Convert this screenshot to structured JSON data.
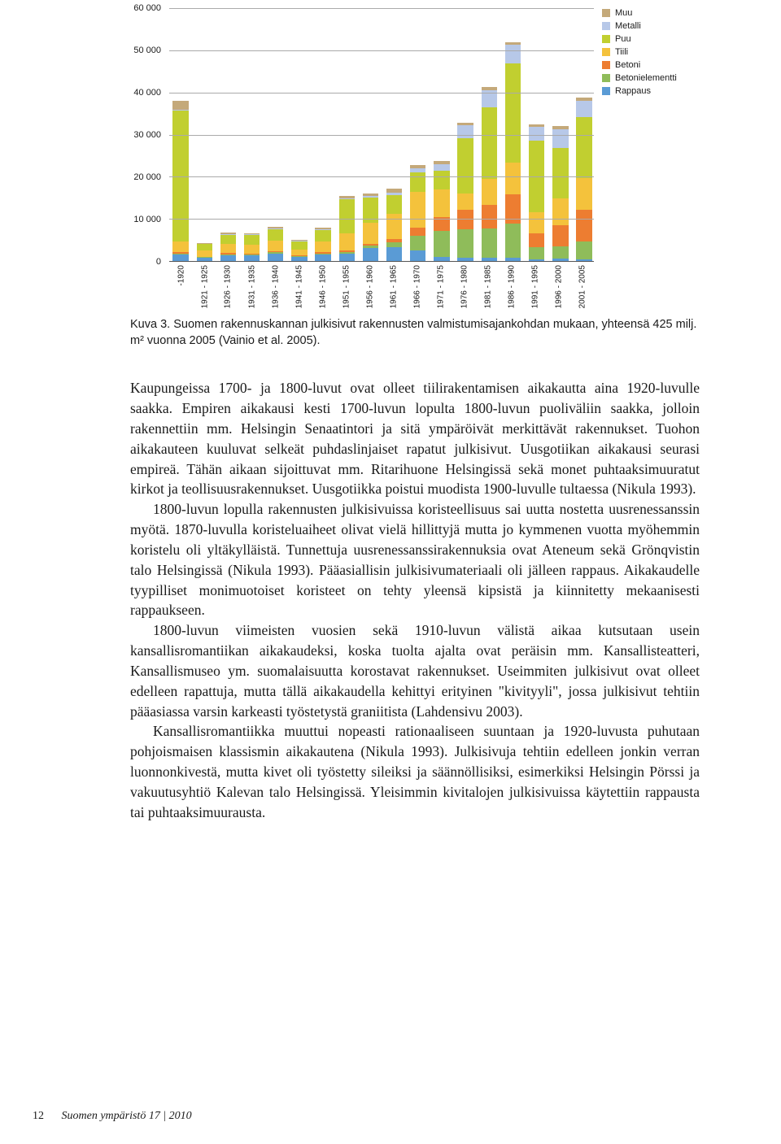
{
  "chart": {
    "type": "stacked-bar",
    "ylim": [
      0,
      60000
    ],
    "yticks": [
      0,
      10000,
      20000,
      30000,
      40000,
      50000,
      60000
    ],
    "ytick_labels": [
      "0",
      "10 000",
      "20 000",
      "30 000",
      "40 000",
      "50 000",
      "60 000"
    ],
    "background_color": "#ffffff",
    "grid_color": "#aaaaaa",
    "axis_font_family": "Arial",
    "axis_font_size": 11,
    "legend_font_size": 11,
    "series": [
      {
        "key": "rappaus",
        "label": "Rappaus",
        "color": "#5a9bd5"
      },
      {
        "key": "betonielementti",
        "label": "Betonielementti",
        "color": "#8fbc5a"
      },
      {
        "key": "betoni",
        "label": "Betoni",
        "color": "#ed7d31"
      },
      {
        "key": "tiili",
        "label": "Tiili",
        "color": "#f4c23c"
      },
      {
        "key": "puu",
        "label": "Puu",
        "color": "#c1cf30"
      },
      {
        "key": "metalli",
        "label": "Metalli",
        "color": "#b7c8e8"
      },
      {
        "key": "muu",
        "label": "Muu",
        "color": "#c4a97a"
      }
    ],
    "legend_order": [
      "muu",
      "metalli",
      "puu",
      "tiili",
      "betoni",
      "betonielementti",
      "rappaus"
    ],
    "categories": [
      "-1920",
      "1921 - 1925",
      "1926 - 1930",
      "1931 - 1935",
      "1936 - 1940",
      "1941 - 1945",
      "1946 - 1950",
      "1951 - 1955",
      "1956 - 1960",
      "1961 - 1965",
      "1966 - 1970",
      "1971 - 1975",
      "1976 - 1980",
      "1981 - 1985",
      "1986 - 1990",
      "1991 - 1995",
      "1996 - 2000",
      "2001 - 2005"
    ],
    "data": {
      "rappaus": [
        1600,
        800,
        1400,
        1300,
        1800,
        1000,
        1500,
        1800,
        3000,
        3300,
        2600,
        1000,
        800,
        700,
        800,
        400,
        500,
        400
      ],
      "betonielementti": [
        200,
        100,
        200,
        200,
        300,
        200,
        300,
        400,
        600,
        1200,
        3300,
        6200,
        6700,
        7000,
        8000,
        2800,
        3000,
        4200
      ],
      "betoni": [
        300,
        150,
        250,
        250,
        300,
        200,
        300,
        400,
        500,
        700,
        2000,
        3300,
        4600,
        5700,
        7000,
        3400,
        5000,
        7500
      ],
      "tiili": [
        2600,
        1450,
        2200,
        2100,
        2500,
        1300,
        2500,
        4000,
        5000,
        6000,
        8600,
        6500,
        4000,
        6000,
        7500,
        5000,
        6300,
        7500
      ],
      "puu": [
        31000,
        1500,
        2200,
        2300,
        2700,
        1900,
        2800,
        8000,
        5900,
        4500,
        4500,
        4500,
        13000,
        17000,
        23500,
        17000,
        12000,
        14500
      ],
      "metalli": [
        200,
        50,
        150,
        150,
        200,
        150,
        200,
        300,
        400,
        600,
        1000,
        1500,
        3200,
        4100,
        4500,
        3300,
        4500,
        4000
      ],
      "muu": [
        2100,
        150,
        300,
        300,
        400,
        250,
        400,
        600,
        700,
        900,
        700,
        800,
        500,
        800,
        700,
        600,
        700,
        700
      ]
    }
  },
  "caption": {
    "label": "Kuva 3.",
    "text": "Suomen rakennuskannan julkisivut rakennusten valmistumisajankohdan mukaan, yhteensä 425 milj. m² vuonna 2005 (Vainio et al. 2005)."
  },
  "paragraphs": [
    "Kaupungeissa 1700- ja 1800-luvut ovat olleet tiilirakentamisen aikakautta aina 1920-luvulle saakka. Empiren aikakausi kesti 1700-luvun lopulta 1800-luvun puoliväliin saakka, jolloin rakennettiin mm. Helsingin Senaatintori ja sitä ympäröivät merkittävät rakennukset. Tuohon aikakauteen kuuluvat selkeät puhdaslinjaiset rapatut julkisivut. Uusgotiikan aikakausi seurasi empireä. Tähän aikaan sijoittuvat mm. Ritarihuone Helsingissä sekä monet puhtaaksimuuratut kirkot ja teollisuusrakennukset. Uusgotiikka poistui muodista 1900-luvulle tultaessa (Nikula 1993).",
    "1800-luvun lopulla rakennusten julkisivuissa koristeellisuus sai uutta nostetta uusrenessanssin myötä. 1870-luvulla koristeluaiheet olivat vielä hillittyjä mutta jo kymmenen vuotta myöhemmin koristelu oli yltäkylläistä. Tunnettuja uusrenessanssirakennuksia ovat Ateneum sekä Grönqvistin talo Helsingissä (Nikula 1993). Pääasiallisin julkisivumateriaali oli jälleen rappaus. Aikakaudelle tyypilliset monimuotoiset koristeet on tehty yleensä kipsistä ja kiinnitetty mekaanisesti rappaukseen.",
    "1800-luvun viimeisten vuosien sekä 1910-luvun välistä aikaa kutsutaan usein kansallisromantiikan aikakaudeksi, koska tuolta ajalta ovat peräisin mm. Kansallisteatteri, Kansallismuseo ym. suomalaisuutta korostavat rakennukset. Useimmiten julkisivut ovat olleet edelleen rapattuja, mutta tällä aikakaudella kehittyi erityinen \"kivityyli\", jossa julkisivut tehtiin pääasiassa varsin karkeasti työstetystä graniitista (Lahdensivu 2003).",
    "Kansallisromantiikka muuttui nopeasti rationaaliseen suuntaan ja 1920-luvusta puhutaan pohjoismaisen klassismin aikakautena (Nikula 1993). Julkisivuja tehtiin edelleen jonkin verran luonnonkivestä, mutta kivet oli työstetty sileiksi ja säännöllisiksi, esimerkiksi Helsingin Pörssi ja vakuutusyhtiö Kalevan talo Helsingissä. Yleisimmin kivitalojen julkisivuissa käytettiin rappausta tai puhtaaksimuurausta."
  ],
  "footer": {
    "page_number": "12",
    "publication": "Suomen ympäristö  17 | 2010"
  }
}
